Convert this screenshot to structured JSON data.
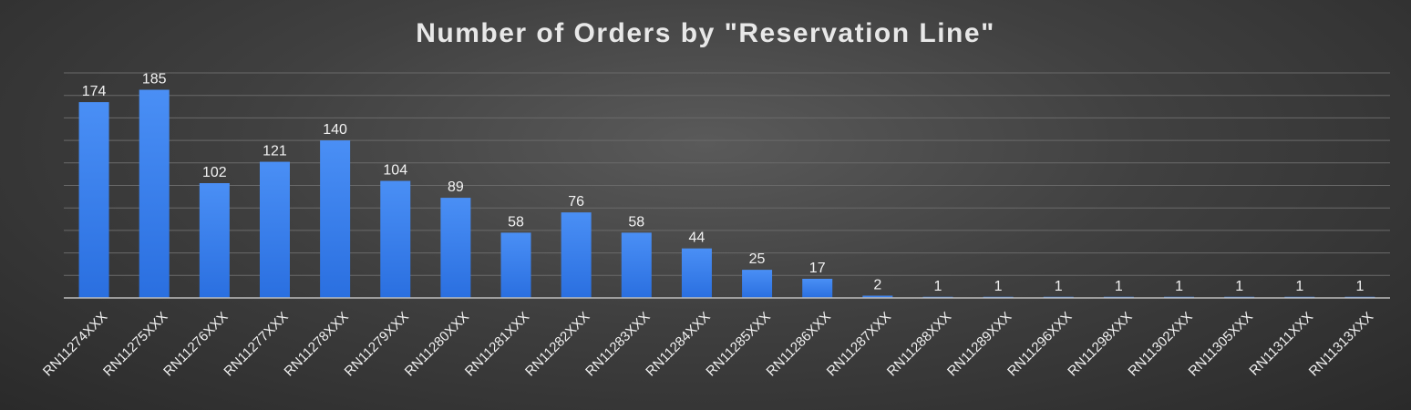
{
  "chart_data": {
    "type": "bar",
    "title": "Number of Orders by \"Reservation Line\"",
    "xlabel": "",
    "ylabel": "",
    "ylim": [
      0,
      200
    ],
    "grid": true,
    "legend": "none",
    "categories": [
      "RN11274XXX",
      "RN11275XXX",
      "RN11276XXX",
      "RN11277XXX",
      "RN11278XXX",
      "RN11279XXX",
      "RN11280XXX",
      "RN11281XXX",
      "RN11282XXX",
      "RN11283XXX",
      "RN11284XXX",
      "RN11285XXX",
      "RN11286XXX",
      "RN11287XXX",
      "RN11288XXX",
      "RN11289XXX",
      "RN11296XXX",
      "RN11298XXX",
      "RN11302XXX",
      "RN11305XXX",
      "RN11311XXX",
      "RN11313XXX"
    ],
    "values": [
      174,
      185,
      102,
      121,
      140,
      104,
      89,
      58,
      76,
      58,
      44,
      25,
      17,
      2,
      1,
      1,
      1,
      1,
      1,
      1,
      1,
      1
    ]
  },
  "colors": {
    "bar_top": "#4a8ff5",
    "bar_bottom": "#2a6fe0",
    "grid": "#6a6a6a",
    "axis": "#bdbdbd",
    "text": "#f2f2f2"
  }
}
